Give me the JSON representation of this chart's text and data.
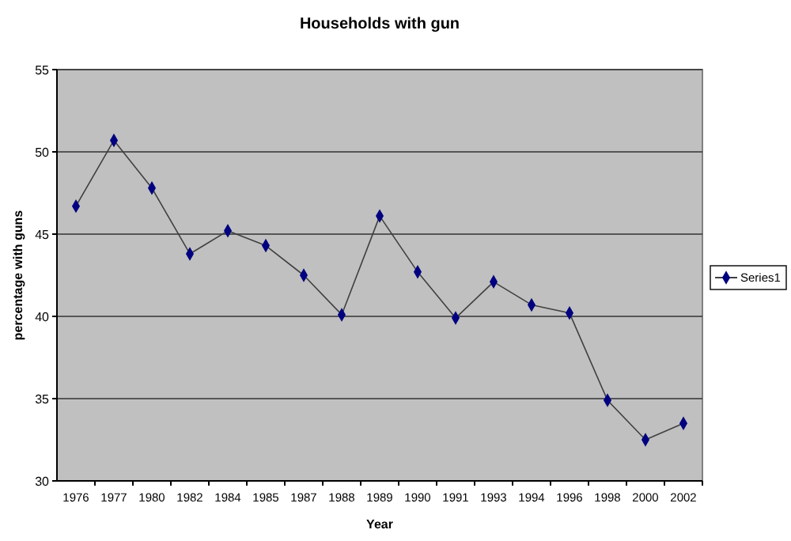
{
  "chart_data": {
    "type": "line",
    "title": "Households with gun",
    "xlabel": "Year",
    "ylabel": "percentage with guns",
    "categories": [
      "1976",
      "1977",
      "1980",
      "1982",
      "1984",
      "1985",
      "1987",
      "1988",
      "1989",
      "1990",
      "1991",
      "1993",
      "1994",
      "1996",
      "1998",
      "2000",
      "2002"
    ],
    "series": [
      {
        "name": "Series1",
        "color": "#000080",
        "values": [
          46.7,
          50.7,
          47.8,
          43.8,
          45.2,
          44.3,
          42.5,
          40.1,
          46.1,
          42.7,
          39.9,
          42.1,
          40.7,
          40.2,
          34.9,
          32.5,
          33.5
        ]
      }
    ],
    "ylim": [
      30,
      55
    ],
    "yticks": [
      30,
      35,
      40,
      45,
      50,
      55
    ],
    "grid": "y",
    "legend": "right",
    "marker": "diamond"
  }
}
